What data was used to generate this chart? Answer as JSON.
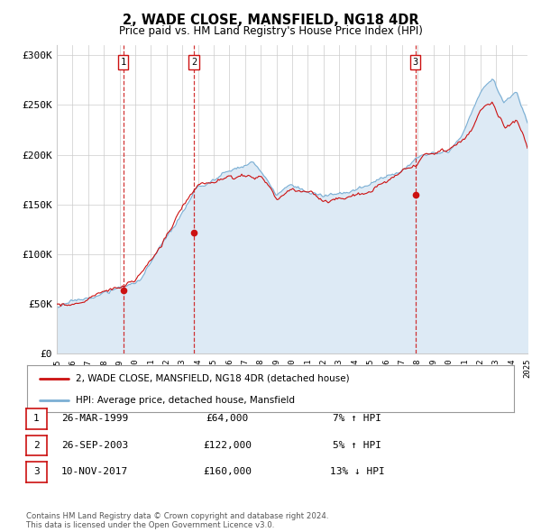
{
  "title": "2, WADE CLOSE, MANSFIELD, NG18 4DR",
  "subtitle": "Price paid vs. HM Land Registry's House Price Index (HPI)",
  "ylim": [
    0,
    310000
  ],
  "ytick_labels": [
    "£0",
    "£50K",
    "£100K",
    "£150K",
    "£200K",
    "£250K",
    "£300K"
  ],
  "ytick_values": [
    0,
    50000,
    100000,
    150000,
    200000,
    250000,
    300000
  ],
  "hpi_color": "#7bafd4",
  "hpi_fill_color": "#ddeaf5",
  "price_color": "#cc1111",
  "sale_marker_color": "#cc1111",
  "vline_color": "#cc1111",
  "sales": [
    {
      "date_num": 1999.23,
      "price": 64000,
      "label": "1"
    },
    {
      "date_num": 2003.73,
      "price": 122000,
      "label": "2"
    },
    {
      "date_num": 2017.86,
      "price": 160000,
      "label": "3"
    }
  ],
  "legend_line1": "2, WADE CLOSE, MANSFIELD, NG18 4DR (detached house)",
  "legend_line2": "HPI: Average price, detached house, Mansfield",
  "table_rows": [
    {
      "num": "1",
      "date": "26-MAR-1999",
      "price": "£64,000",
      "hpi": "7% ↑ HPI"
    },
    {
      "num": "2",
      "date": "26-SEP-2003",
      "price": "£122,000",
      "hpi": "5% ↑ HPI"
    },
    {
      "num": "3",
      "date": "10-NOV-2017",
      "price": "£160,000",
      "hpi": "13% ↓ HPI"
    }
  ],
  "footer": "Contains HM Land Registry data © Crown copyright and database right 2024.\nThis data is licensed under the Open Government Licence v3.0.",
  "background_color": "#ffffff",
  "grid_color": "#cccccc"
}
